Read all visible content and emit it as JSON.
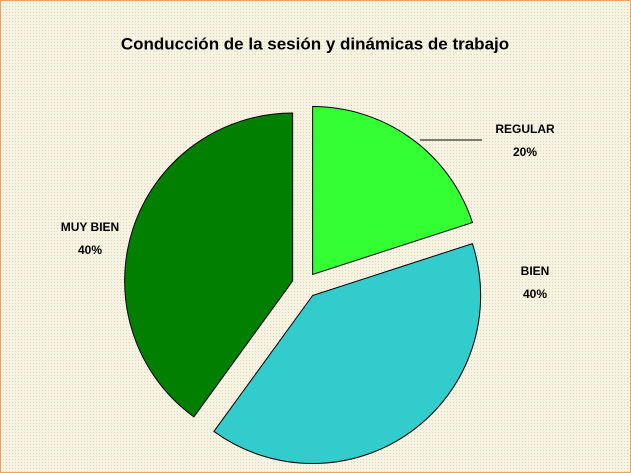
{
  "chart_data": {
    "type": "pie",
    "title": "Conducción de la sesión y dinámicas de trabajo",
    "categories": [
      "REGULAR",
      "BIEN",
      "MUY BIEN"
    ],
    "values": [
      20,
      40,
      40
    ],
    "value_labels": [
      "20%",
      "40%",
      "40%"
    ],
    "colors": [
      "#33ff33",
      "#33cccc",
      "#007f00"
    ]
  }
}
